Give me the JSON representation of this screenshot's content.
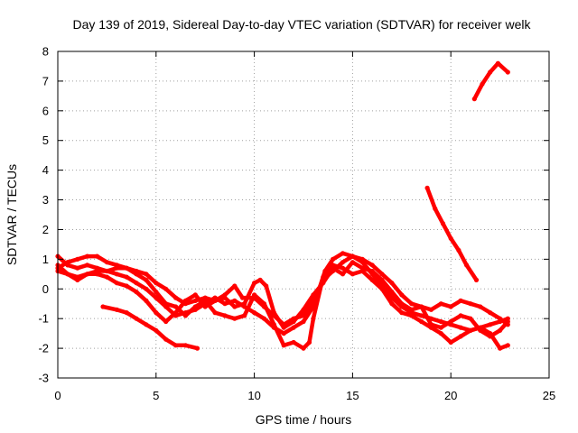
{
  "chart_data": {
    "type": "line",
    "title": "Day 139 of 2019, Sidereal Day-to-day VTEC variation (SDTVAR) for receiver welk",
    "xlabel": "GPS time / hours",
    "ylabel": "SDTVAR / TECUs",
    "xlim": [
      0,
      25
    ],
    "ylim": [
      -3,
      8
    ],
    "x_ticks": [
      "0",
      "5",
      "10",
      "15",
      "20",
      "25"
    ],
    "y_ticks": [
      "-3",
      "-2",
      "-1",
      "0",
      "1",
      "2",
      "3",
      "4",
      "5",
      "6",
      "7",
      "8"
    ],
    "grid": true,
    "series_color": "#ff0000",
    "series": [
      {
        "name": "s1",
        "points": [
          [
            0.0,
            1.1
          ],
          [
            0.5,
            0.8
          ],
          [
            1.0,
            0.7
          ],
          [
            1.5,
            0.8
          ],
          [
            2.0,
            0.7
          ],
          [
            2.5,
            0.6
          ],
          [
            3.0,
            0.5
          ],
          [
            3.5,
            0.4
          ],
          [
            4.0,
            0.2
          ],
          [
            4.5,
            0.0
          ],
          [
            5.0,
            -0.3
          ],
          [
            5.5,
            -0.6
          ],
          [
            6.0,
            -0.9
          ],
          [
            6.5,
            -0.8
          ],
          [
            7.0,
            -0.7
          ],
          [
            7.5,
            -0.5
          ],
          [
            8.0,
            -0.3
          ],
          [
            8.5,
            -0.5
          ],
          [
            9.0,
            -0.4
          ],
          [
            9.5,
            -0.6
          ],
          [
            10.0,
            -0.8
          ],
          [
            10.5,
            -1.0
          ],
          [
            11.0,
            -1.3
          ],
          [
            11.5,
            -1.5
          ],
          [
            12.0,
            -1.3
          ],
          [
            12.5,
            -1.1
          ],
          [
            13.0,
            -0.6
          ],
          [
            13.3,
            0.0
          ],
          [
            13.6,
            0.6
          ],
          [
            14.0,
            1.0
          ],
          [
            14.5,
            1.2
          ],
          [
            15.0,
            1.1
          ],
          [
            15.5,
            0.9
          ],
          [
            16.0,
            0.5
          ],
          [
            16.5,
            0.1
          ],
          [
            17.0,
            -0.3
          ],
          [
            17.5,
            -0.6
          ],
          [
            18.0,
            -0.8
          ],
          [
            18.5,
            -0.9
          ],
          [
            19.0,
            -1.0
          ],
          [
            19.5,
            -1.1
          ],
          [
            20.0,
            -1.2
          ],
          [
            20.5,
            -1.3
          ],
          [
            21.0,
            -1.4
          ],
          [
            21.5,
            -1.3
          ],
          [
            22.0,
            -1.2
          ],
          [
            22.5,
            -1.1
          ],
          [
            22.9,
            -1.0
          ]
        ]
      },
      {
        "name": "s2",
        "points": [
          [
            0.0,
            0.7
          ],
          [
            0.5,
            0.9
          ],
          [
            1.0,
            1.0
          ],
          [
            1.5,
            1.1
          ],
          [
            2.0,
            1.1
          ],
          [
            2.5,
            0.9
          ],
          [
            3.0,
            0.8
          ],
          [
            3.5,
            0.7
          ],
          [
            4.0,
            0.6
          ],
          [
            4.5,
            0.5
          ],
          [
            5.0,
            0.2
          ],
          [
            5.5,
            0.0
          ],
          [
            6.0,
            -0.3
          ],
          [
            6.5,
            -0.5
          ],
          [
            7.0,
            -0.4
          ],
          [
            7.5,
            -0.3
          ],
          [
            8.0,
            -0.4
          ],
          [
            8.5,
            -0.2
          ],
          [
            9.0,
            0.1
          ],
          [
            9.4,
            -0.3
          ],
          [
            10.0,
            -0.3
          ],
          [
            10.5,
            -0.6
          ],
          [
            11.0,
            -0.9
          ],
          [
            11.5,
            -1.2
          ],
          [
            12.0,
            -1.0
          ],
          [
            12.5,
            -0.9
          ],
          [
            13.0,
            -0.4
          ],
          [
            13.5,
            0.3
          ],
          [
            14.0,
            0.6
          ],
          [
            14.5,
            0.9
          ],
          [
            15.0,
            1.1
          ],
          [
            15.5,
            1.0
          ],
          [
            16.0,
            0.8
          ],
          [
            16.5,
            0.5
          ],
          [
            17.0,
            0.2
          ],
          [
            17.5,
            -0.2
          ],
          [
            18.0,
            -0.5
          ],
          [
            18.5,
            -0.6
          ],
          [
            19.0,
            -0.7
          ],
          [
            19.5,
            -0.5
          ],
          [
            20.0,
            -0.6
          ],
          [
            20.5,
            -0.4
          ],
          [
            21.0,
            -0.5
          ],
          [
            21.5,
            -0.6
          ],
          [
            22.0,
            -0.8
          ],
          [
            22.5,
            -1.0
          ],
          [
            22.9,
            -1.2
          ]
        ]
      },
      {
        "name": "s3",
        "points": [
          [
            0.0,
            0.8
          ],
          [
            0.5,
            0.5
          ],
          [
            1.0,
            0.3
          ],
          [
            1.5,
            0.5
          ],
          [
            2.0,
            0.5
          ],
          [
            2.5,
            0.4
          ],
          [
            3.0,
            0.2
          ],
          [
            3.5,
            0.1
          ],
          [
            4.0,
            -0.1
          ],
          [
            4.5,
            -0.4
          ],
          [
            5.0,
            -0.8
          ],
          [
            5.5,
            -1.1
          ],
          [
            6.0,
            -0.8
          ],
          [
            6.5,
            -0.4
          ],
          [
            7.0,
            -0.2
          ],
          [
            7.5,
            -0.6
          ],
          [
            8.0,
            -0.4
          ],
          [
            8.5,
            -0.3
          ],
          [
            9.0,
            -0.6
          ],
          [
            9.5,
            -0.5
          ],
          [
            10.0,
            0.2
          ],
          [
            10.3,
            0.3
          ],
          [
            10.6,
            0.1
          ],
          [
            11.0,
            -0.8
          ],
          [
            11.5,
            -1.3
          ],
          [
            12.0,
            -1.1
          ],
          [
            12.5,
            -0.7
          ],
          [
            13.0,
            -0.2
          ],
          [
            13.5,
            0.2
          ],
          [
            14.0,
            0.7
          ],
          [
            14.5,
            0.5
          ],
          [
            15.0,
            0.9
          ],
          [
            15.5,
            0.7
          ],
          [
            16.0,
            0.6
          ],
          [
            16.5,
            0.3
          ],
          [
            17.0,
            -0.1
          ],
          [
            17.5,
            -0.5
          ],
          [
            18.0,
            -0.7
          ],
          [
            18.5,
            -0.6
          ],
          [
            19.0,
            -1.2
          ],
          [
            19.5,
            -1.3
          ],
          [
            20.0,
            -1.1
          ],
          [
            20.5,
            -0.9
          ],
          [
            21.0,
            -1.0
          ],
          [
            21.5,
            -1.4
          ],
          [
            22.0,
            -1.6
          ],
          [
            22.5,
            -1.4
          ],
          [
            22.9,
            -1.1
          ]
        ]
      },
      {
        "name": "s4",
        "points": [
          [
            0.0,
            0.6
          ],
          [
            0.5,
            0.5
          ],
          [
            1.0,
            0.4
          ],
          [
            1.5,
            0.5
          ],
          [
            2.0,
            0.6
          ],
          [
            2.5,
            0.6
          ],
          [
            3.0,
            0.7
          ],
          [
            3.5,
            0.7
          ],
          [
            4.0,
            0.5
          ],
          [
            4.5,
            0.3
          ],
          [
            5.0,
            -0.1
          ],
          [
            5.5,
            -0.5
          ],
          [
            6.0,
            -0.6
          ],
          [
            6.5,
            -0.9
          ],
          [
            7.0,
            -0.6
          ],
          [
            7.5,
            -0.4
          ],
          [
            8.0,
            -0.8
          ],
          [
            8.5,
            -0.9
          ],
          [
            9.0,
            -1.0
          ],
          [
            9.5,
            -0.9
          ],
          [
            10.0,
            -0.2
          ],
          [
            10.5,
            -0.5
          ],
          [
            11.0,
            -1.2
          ],
          [
            11.5,
            -1.9
          ],
          [
            12.0,
            -1.8
          ],
          [
            12.5,
            -2.0
          ],
          [
            12.8,
            -1.8
          ],
          [
            13.0,
            -1.0
          ],
          [
            13.5,
            0.4
          ],
          [
            14.0,
            0.8
          ],
          [
            14.5,
            0.7
          ],
          [
            15.0,
            0.5
          ],
          [
            15.5,
            0.6
          ],
          [
            16.0,
            0.3
          ],
          [
            16.5,
            0.0
          ],
          [
            17.0,
            -0.5
          ],
          [
            17.5,
            -0.8
          ],
          [
            18.0,
            -0.9
          ],
          [
            18.5,
            -1.1
          ],
          [
            19.0,
            -1.3
          ],
          [
            19.5,
            -1.5
          ],
          [
            20.0,
            -1.8
          ],
          [
            20.5,
            -1.6
          ],
          [
            21.0,
            -1.4
          ],
          [
            21.5,
            -1.3
          ],
          [
            22.0,
            -1.5
          ],
          [
            22.5,
            -2.0
          ],
          [
            22.9,
            -1.9
          ]
        ]
      },
      {
        "name": "s5",
        "points": [
          [
            2.3,
            -0.6
          ],
          [
            3.0,
            -0.7
          ],
          [
            3.5,
            -0.8
          ],
          [
            4.0,
            -1.0
          ],
          [
            4.5,
            -1.2
          ],
          [
            5.0,
            -1.4
          ],
          [
            5.5,
            -1.7
          ],
          [
            6.0,
            -1.9
          ],
          [
            6.5,
            -1.9
          ],
          [
            7.1,
            -2.0
          ]
        ]
      },
      {
        "name": "s6",
        "points": [
          [
            18.8,
            3.4
          ],
          [
            19.2,
            2.7
          ],
          [
            19.6,
            2.2
          ],
          [
            20.0,
            1.7
          ],
          [
            20.4,
            1.3
          ],
          [
            20.8,
            0.8
          ],
          [
            21.3,
            0.3
          ]
        ]
      },
      {
        "name": "s7",
        "points": [
          [
            21.2,
            6.4
          ],
          [
            21.6,
            6.9
          ],
          [
            22.0,
            7.3
          ],
          [
            22.4,
            7.6
          ],
          [
            22.9,
            7.3
          ]
        ]
      }
    ]
  }
}
